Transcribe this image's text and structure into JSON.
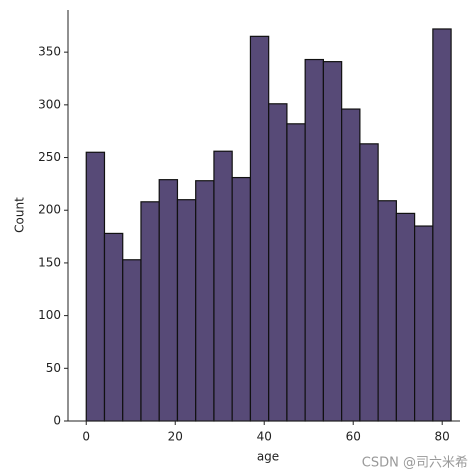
{
  "chart_data": {
    "type": "histogram",
    "xlabel": "age",
    "ylabel": "Count",
    "bins": [
      0,
      4.1,
      8.2,
      12.3,
      16.4,
      20.5,
      24.6,
      28.7,
      32.8,
      36.9,
      41,
      45.1,
      49.2,
      53.3,
      57.4,
      61.5,
      65.6,
      69.7,
      73.8,
      77.9,
      82
    ],
    "values": [
      255,
      178,
      153,
      208,
      229,
      210,
      228,
      256,
      231,
      365,
      301,
      282,
      343,
      341,
      296,
      263,
      209,
      197,
      185,
      372
    ],
    "color": "#574a77",
    "edgecolor": "#111111",
    "xlim": [
      -4.1,
      84
    ],
    "ylim": [
      0,
      390
    ],
    "xticks": [
      0,
      20,
      40,
      60,
      80
    ],
    "yticks": [
      0,
      50,
      100,
      150,
      200,
      250,
      300,
      350
    ]
  },
  "watermark": "CSDN @司六米希"
}
